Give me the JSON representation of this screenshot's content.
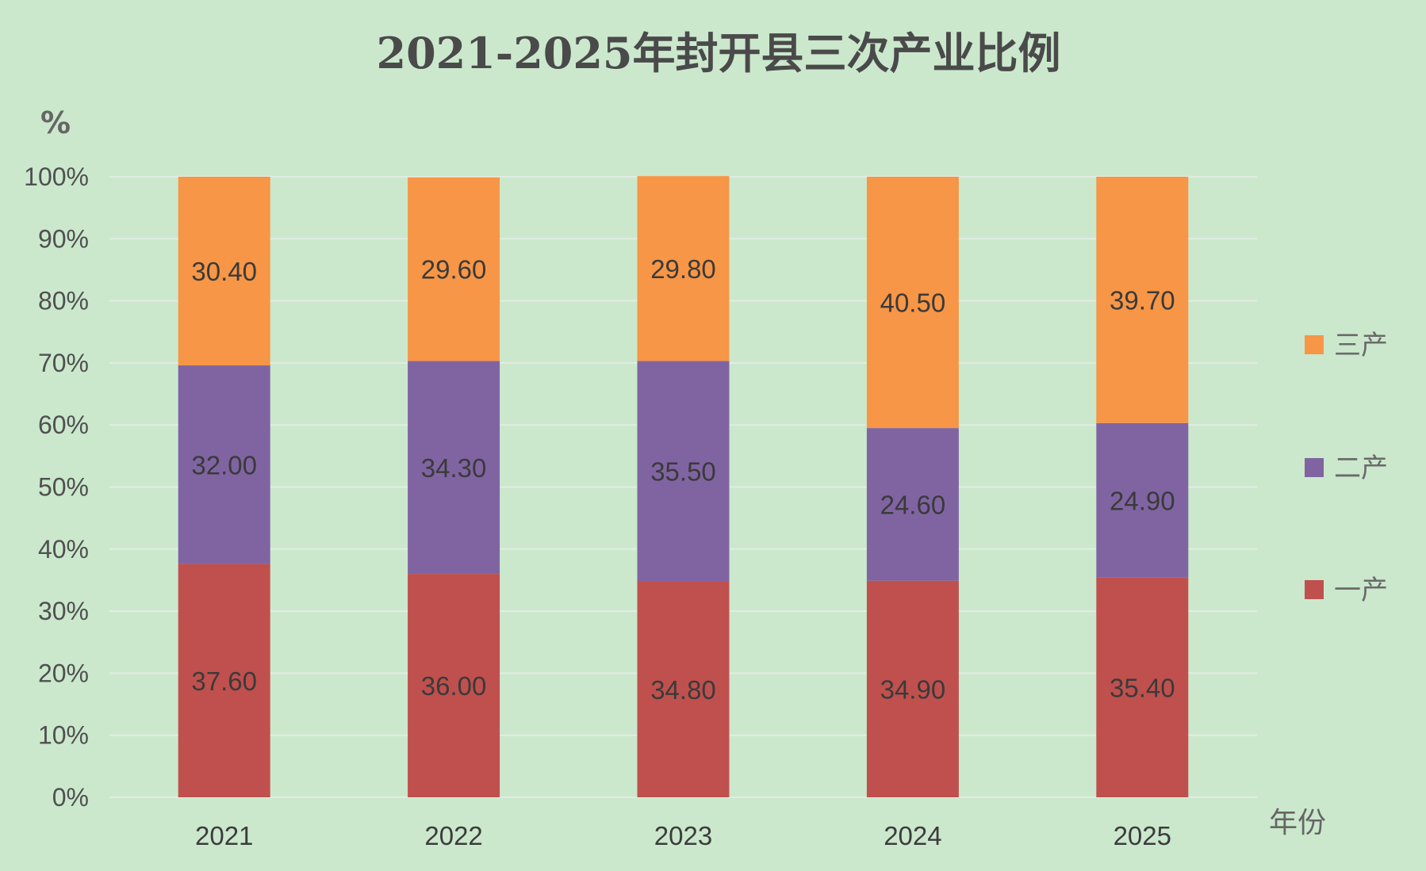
{
  "chart_data": {
    "type": "bar",
    "stacked": true,
    "title": "2021-2025年封开县三次产业比例",
    "ylabel": "%",
    "xlabel": "年份",
    "categories": [
      "2021",
      "2022",
      "2023",
      "2024",
      "2025"
    ],
    "yticks": [
      "0%",
      "10%",
      "20%",
      "30%",
      "40%",
      "50%",
      "60%",
      "70%",
      "80%",
      "90%",
      "100%"
    ],
    "ylim": [
      0,
      100
    ],
    "grid": true,
    "legend_position": "right",
    "series": [
      {
        "name": "一产",
        "color": "#c0504d",
        "values": [
          37.6,
          36.0,
          34.8,
          34.9,
          35.4
        ],
        "labels": [
          "37.60",
          "36.00",
          "34.80",
          "34.90",
          "35.40"
        ]
      },
      {
        "name": "二产",
        "color": "#8064a2",
        "values": [
          32.0,
          34.3,
          35.5,
          24.6,
          24.9
        ],
        "labels": [
          "32.00",
          "34.30",
          "35.50",
          "24.60",
          "24.90"
        ]
      },
      {
        "name": "三产",
        "color": "#f79646",
        "values": [
          30.4,
          29.6,
          29.8,
          40.5,
          39.7
        ],
        "labels": [
          "30.40",
          "29.60",
          "29.80",
          "40.50",
          "39.70"
        ]
      }
    ],
    "legend_order": [
      "三产",
      "二产",
      "一产"
    ]
  }
}
